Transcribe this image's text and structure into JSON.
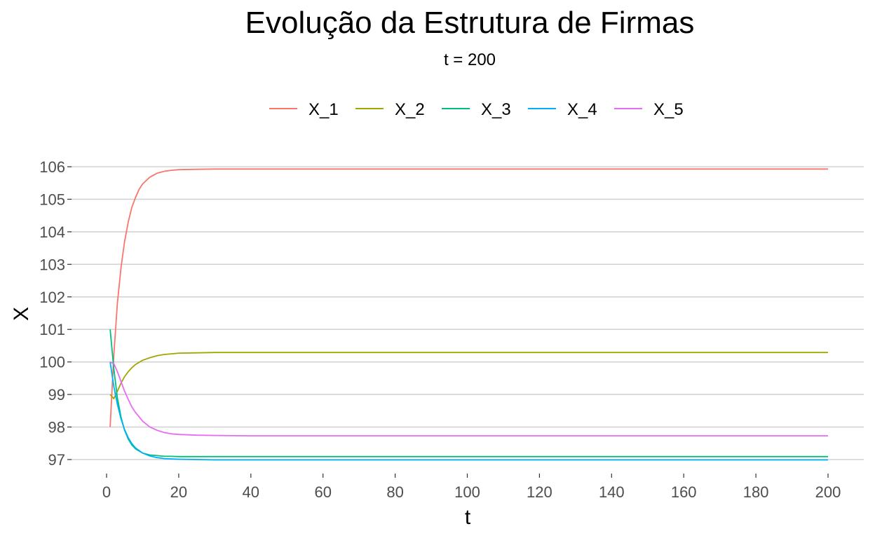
{
  "chart_data": {
    "type": "line",
    "title": "Evolução da Estrutura de Firmas",
    "subtitle": "t = 200",
    "xlabel": "t",
    "ylabel": "X",
    "xlim": [
      1,
      200
    ],
    "ylim": [
      96.9,
      106.1
    ],
    "xticks": [
      0,
      20,
      40,
      60,
      80,
      100,
      120,
      140,
      160,
      180,
      200
    ],
    "yticks": [
      97,
      98,
      99,
      100,
      101,
      102,
      103,
      104,
      105,
      106
    ],
    "grid": "horizontal",
    "legend_position": "top",
    "series": [
      {
        "name": "X_1",
        "color": "#F8766D",
        "x": [
          1,
          2,
          3,
          4,
          5,
          6,
          7,
          8,
          9,
          10,
          12,
          14,
          16,
          18,
          20,
          25,
          30,
          40,
          60,
          100,
          150,
          200
        ],
        "values": [
          98.0,
          100.2,
          101.8,
          102.9,
          103.7,
          104.3,
          104.75,
          105.05,
          105.3,
          105.47,
          105.68,
          105.8,
          105.86,
          105.89,
          105.91,
          105.92,
          105.93,
          105.93,
          105.93,
          105.93,
          105.93,
          105.93
        ]
      },
      {
        "name": "X_2",
        "color": "#A3A500",
        "x": [
          1,
          2,
          3,
          4,
          5,
          6,
          7,
          8,
          10,
          12,
          14,
          16,
          18,
          20,
          25,
          30,
          40,
          60,
          100,
          150,
          200
        ],
        "values": [
          99.0,
          98.87,
          99.1,
          99.35,
          99.55,
          99.7,
          99.82,
          99.92,
          100.05,
          100.13,
          100.19,
          100.23,
          100.25,
          100.27,
          100.28,
          100.29,
          100.29,
          100.29,
          100.29,
          100.29,
          100.29
        ]
      },
      {
        "name": "X_3",
        "color": "#00BF7D",
        "x": [
          1,
          2,
          3,
          4,
          5,
          6,
          7,
          8,
          10,
          12,
          14,
          16,
          18,
          20,
          25,
          30,
          40,
          60,
          100,
          150,
          200
        ],
        "values": [
          101.0,
          99.8,
          98.9,
          98.3,
          97.9,
          97.63,
          97.45,
          97.33,
          97.2,
          97.14,
          97.12,
          97.1,
          97.1,
          97.09,
          97.09,
          97.09,
          97.09,
          97.09,
          97.09,
          97.09,
          97.09
        ]
      },
      {
        "name": "X_4",
        "color": "#00B0F6",
        "x": [
          1,
          2,
          3,
          4,
          5,
          6,
          7,
          8,
          10,
          12,
          14,
          16,
          18,
          20,
          25,
          30,
          40,
          60,
          100,
          150,
          200
        ],
        "values": [
          100.0,
          99.25,
          98.7,
          98.25,
          97.92,
          97.67,
          97.49,
          97.36,
          97.2,
          97.11,
          97.06,
          97.03,
          97.02,
          97.01,
          97.0,
          96.99,
          96.99,
          96.99,
          96.99,
          96.99,
          96.99
        ]
      },
      {
        "name": "X_5",
        "color": "#E76BF3",
        "x": [
          1,
          2,
          3,
          4,
          5,
          6,
          7,
          8,
          10,
          12,
          14,
          16,
          18,
          20,
          25,
          30,
          40,
          60,
          100,
          150,
          200
        ],
        "values": [
          100.0,
          99.95,
          99.7,
          99.4,
          99.1,
          98.85,
          98.62,
          98.45,
          98.18,
          98.0,
          97.9,
          97.83,
          97.79,
          97.77,
          97.75,
          97.74,
          97.73,
          97.73,
          97.73,
          97.73,
          97.73
        ]
      }
    ]
  }
}
